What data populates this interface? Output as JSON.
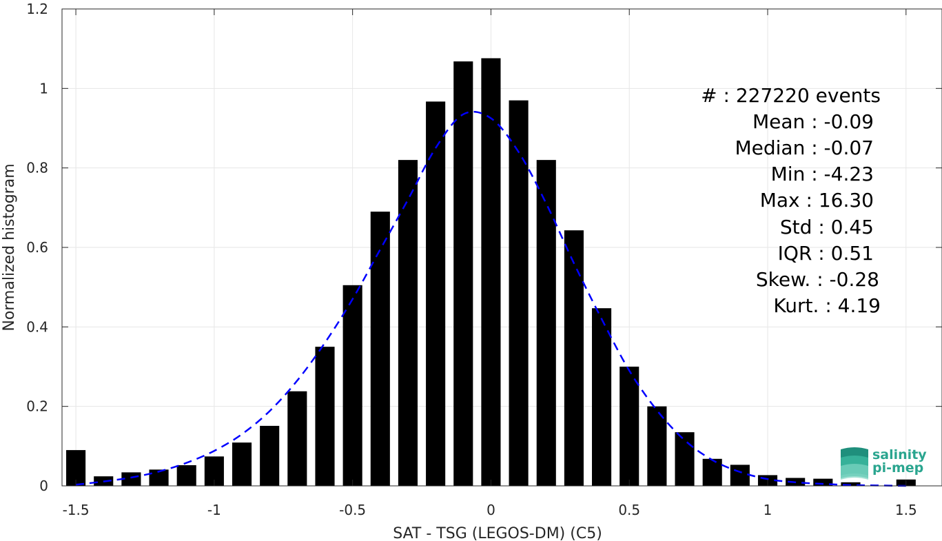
{
  "chart_data": {
    "type": "bar",
    "xlabel": "SAT - TSG (LEGOS-DM) (C5)",
    "ylabel": "Normalized histogram",
    "xlim": [
      -1.55,
      1.63
    ],
    "ylim": [
      0,
      1.2
    ],
    "xticks": [
      -1.5,
      -1,
      -0.5,
      0,
      0.5,
      1,
      1.5
    ],
    "xtick_labels": [
      "-1.5",
      "-1",
      "-0.5",
      "0",
      "0.5",
      "1",
      "1.5"
    ],
    "yticks": [
      0,
      0.2,
      0.4,
      0.6,
      0.8,
      1,
      1.2
    ],
    "ytick_labels": [
      "0",
      "0.2",
      "0.4",
      "0.6",
      "0.8",
      "1",
      "1.2"
    ],
    "grid": true,
    "bar_color": "#000000",
    "fit_color": "#0000ff",
    "bar_width": 0.07,
    "bins": [
      -1.5,
      -1.4,
      -1.3,
      -1.2,
      -1.1,
      -1.0,
      -0.9,
      -0.8,
      -0.7,
      -0.6,
      -0.5,
      -0.4,
      -0.3,
      -0.2,
      -0.1,
      0.0,
      0.1,
      0.2,
      0.3,
      0.4,
      0.5,
      0.6,
      0.7,
      0.8,
      0.9,
      1.0,
      1.1,
      1.2,
      1.3,
      1.5
    ],
    "values": [
      0.09,
      0.024,
      0.034,
      0.041,
      0.052,
      0.074,
      0.109,
      0.151,
      0.238,
      0.35,
      0.505,
      0.69,
      0.82,
      0.967,
      1.068,
      1.076,
      0.97,
      0.82,
      0.643,
      0.447,
      0.3,
      0.2,
      0.135,
      0.068,
      0.053,
      0.027,
      0.02,
      0.018,
      0.009,
      0.016
    ],
    "fit_curve": {
      "style": "dashed",
      "x": [
        -1.5,
        -1.4,
        -1.3,
        -1.2,
        -1.1,
        -1.0,
        -0.9,
        -0.8,
        -0.7,
        -0.6,
        -0.5,
        -0.4,
        -0.3,
        -0.2,
        -0.1,
        0.0,
        0.1,
        0.2,
        0.3,
        0.4,
        0.5,
        0.6,
        0.7,
        0.8,
        0.9,
        1.0,
        1.1,
        1.2,
        1.3,
        1.4,
        1.5
      ],
      "y": [
        0.003,
        0.011,
        0.021,
        0.036,
        0.058,
        0.088,
        0.13,
        0.188,
        0.265,
        0.36,
        0.47,
        0.595,
        0.72,
        0.85,
        0.935,
        0.925,
        0.84,
        0.71,
        0.56,
        0.42,
        0.29,
        0.19,
        0.115,
        0.065,
        0.035,
        0.017,
        0.009,
        0.005,
        0.002,
        0.001,
        0.0
      ]
    }
  },
  "stats_box": {
    "lines": [
      "#  : 227220 events",
      "Mean : -0.09",
      "Median : -0.07",
      "Min : -4.23",
      "Max : 16.30",
      "Std : 0.45",
      "IQR : 0.51",
      "Skew. : -0.28",
      "Kurt. : 4.19"
    ]
  },
  "logo": {
    "line1": "salinity",
    "line2": "pi-mep",
    "color": "#2aa58f"
  }
}
